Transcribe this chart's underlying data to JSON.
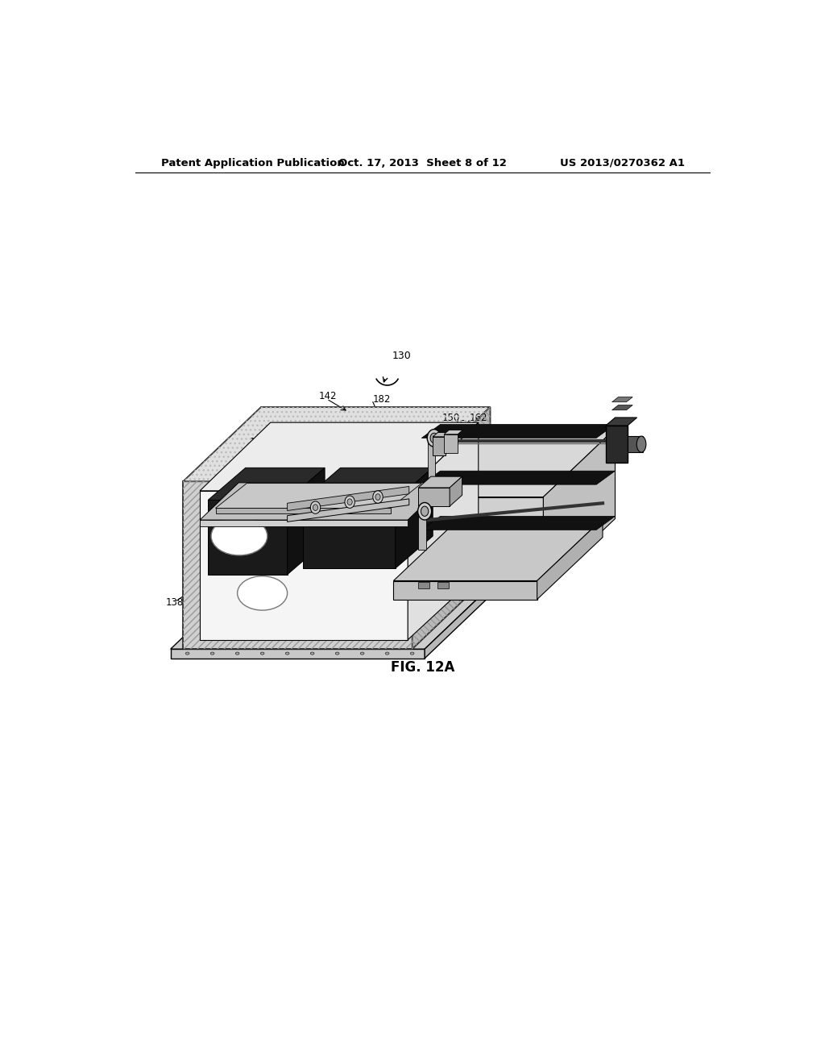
{
  "header_left": "Patent Application Publication",
  "header_center": "Oct. 17, 2013  Sheet 8 of 12",
  "header_right": "US 2013/0270362 A1",
  "figure_label": "FIG. 12A",
  "background_color": "#ffffff",
  "light_gray": "#d4d4d4",
  "mid_gray": "#b0b0b0",
  "dark_gray": "#888888",
  "very_light": "#f0f0f0",
  "black": "#111111",
  "hatch_gray": "#aaaaaa"
}
